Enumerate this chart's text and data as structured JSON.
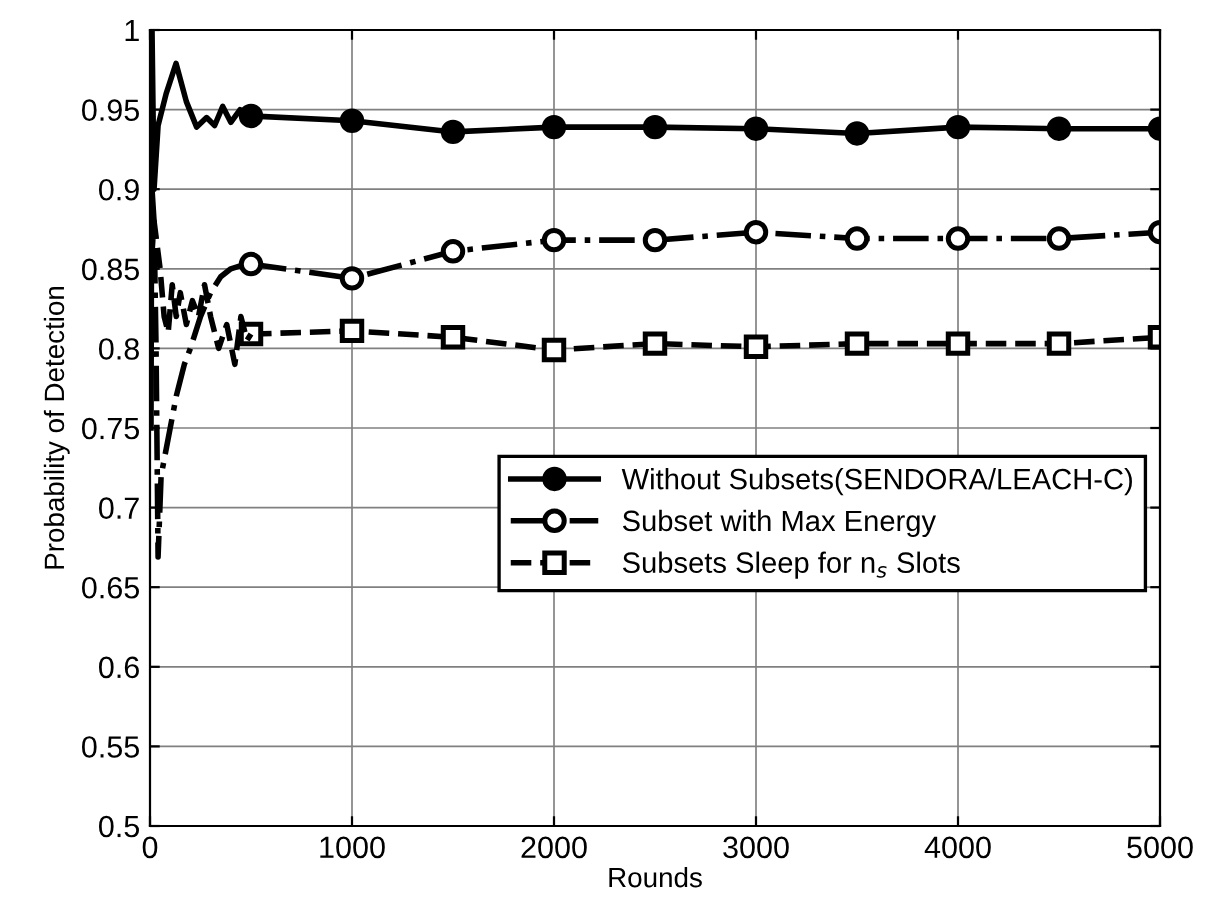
{
  "chart_data": {
    "type": "line",
    "xlabel": "Rounds",
    "ylabel": "Probability of Detection",
    "xlim": [
      0,
      5000
    ],
    "xticks": [
      0,
      1000,
      2000,
      3000,
      4000,
      5000
    ],
    "ylim": [
      0.5,
      1
    ],
    "yticks": [
      0.5,
      0.55,
      0.6,
      0.65,
      0.7,
      0.75,
      0.8,
      0.85,
      0.9,
      0.95,
      1
    ],
    "grid": true,
    "legend": "right",
    "series": [
      {
        "name": "Without Subsets(SENDORA/LEACH-C)",
        "color": "#000000",
        "line_style": "solid",
        "marker": "circle",
        "x": [
          500,
          1000,
          1500,
          2000,
          2500,
          3000,
          3500,
          4000,
          4500,
          5000
        ],
        "values": [
          0.946,
          0.943,
          0.936,
          0.939,
          0.939,
          0.938,
          0.935,
          0.939,
          0.938,
          0.938
        ]
      },
      {
        "name": "Subset with Max Energy",
        "color": "#000000",
        "line_style": "dashdot",
        "marker": "circle_open",
        "x": [
          500,
          1000,
          1500,
          2000,
          2500,
          3000,
          3500,
          4000,
          4500,
          5000
        ],
        "values": [
          0.853,
          0.844,
          0.861,
          0.868,
          0.868,
          0.873,
          0.869,
          0.869,
          0.869,
          0.873
        ]
      },
      {
        "name": "Subsets Sleep for n$_{s}$ Slots",
        "color": "#000000",
        "line_style": "dashed",
        "marker": "square_open",
        "x": [
          500,
          1000,
          1500,
          2000,
          2500,
          3000,
          3500,
          4000,
          4500,
          5000
        ],
        "values": [
          0.809,
          0.811,
          0.807,
          0.799,
          0.803,
          0.801,
          0.803,
          0.803,
          0.803,
          0.807
        ]
      },
      {
        "color": "#000000",
        "line_style": "solid",
        "marker": "none",
        "x": [
          5,
          10,
          20,
          40,
          80,
          129,
          180,
          231,
          280,
          320,
          360,
          400,
          446,
          500
        ],
        "values": [
          0.75,
          1.0,
          0.9,
          0.94,
          0.96,
          0.979,
          0.955,
          0.939,
          0.945,
          0.94,
          0.952,
          0.942,
          0.95,
          0.946
        ]
      },
      {
        "color": "#000000",
        "line_style": "dashdot",
        "marker": "none",
        "x": [
          10,
          20,
          30,
          40,
          55,
          70,
          100,
          130,
          170,
          200,
          250,
          300,
          350,
          400,
          450,
          500
        ],
        "values": [
          0.9,
          0.88,
          0.8,
          0.669,
          0.72,
          0.73,
          0.75,
          0.77,
          0.79,
          0.8,
          0.82,
          0.835,
          0.845,
          0.85,
          0.852,
          0.853
        ]
      },
      {
        "color": "#000000",
        "line_style": "dashed",
        "marker": "none",
        "x": [
          10,
          20,
          30,
          50,
          70,
          90,
          110,
          130,
          150,
          180,
          210,
          240,
          270,
          300,
          340,
          380,
          420,
          450,
          480,
          500
        ],
        "values": [
          0.86,
          0.88,
          0.87,
          0.85,
          0.82,
          0.81,
          0.84,
          0.82,
          0.835,
          0.815,
          0.83,
          0.82,
          0.84,
          0.82,
          0.8,
          0.815,
          0.79,
          0.82,
          0.805,
          0.809
        ]
      }
    ]
  }
}
